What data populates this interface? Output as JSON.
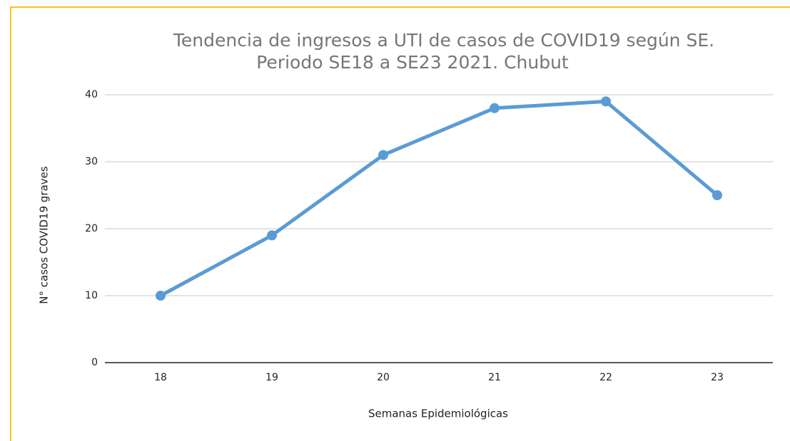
{
  "chart_data": {
    "type": "line",
    "title": [
      "Tendencia de ingresos a UTI de casos de COVID19 según SE.",
      "Periodo SE18 a SE23 2021. Chubut"
    ],
    "x_label": "Semanas Epidemiológicas",
    "y_label": "N° casos COVID19 graves",
    "categories": [
      "18",
      "19",
      "20",
      "21",
      "22",
      "23"
    ],
    "values": [
      10,
      19,
      31,
      38,
      39,
      25
    ],
    "color": "#5b9bd5",
    "ylim": [
      0,
      40
    ],
    "yticks": [
      0,
      10,
      20,
      30,
      40
    ],
    "grid": true
  }
}
